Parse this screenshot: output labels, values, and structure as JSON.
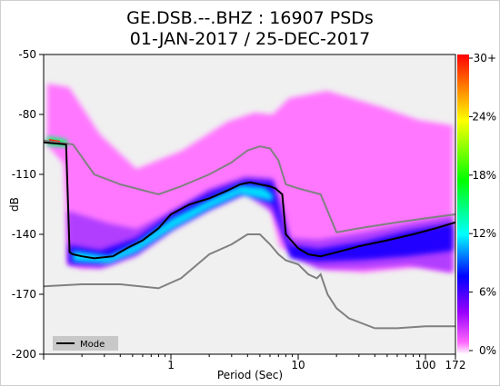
{
  "title_line1": "GE.DSB.--.BHZ : 16907 PSDs",
  "title_line2": "01-JAN-2017 / 25-DEC-2017",
  "chart_data": {
    "type": "heatmap",
    "xlabel": "Period (Sec)",
    "ylabel": "dB",
    "xscale": "log",
    "xlim": [
      0.1,
      172
    ],
    "ylim": [
      -200,
      -50
    ],
    "xticks": [
      {
        "value": 1,
        "label": "1"
      },
      {
        "value": 10,
        "label": "10"
      },
      {
        "value": 100,
        "label": "100"
      },
      {
        "value": 172,
        "label": "172"
      }
    ],
    "yticks": [
      -50,
      -80,
      -110,
      -140,
      -170,
      -200
    ],
    "colorbar": {
      "labels": [
        "30+",
        "24%",
        "18%",
        "12%",
        "6%",
        "0%"
      ],
      "colors": [
        "#ff0000",
        "#ff8c00",
        "#ffff00",
        "#00ff00",
        "#00ffff",
        "#0000ff",
        "#9900ff",
        "#ff66ff",
        "#ffffff"
      ]
    },
    "legend": {
      "placement": "bottom-left",
      "entries": [
        "Mode"
      ]
    },
    "series": [
      {
        "name": "Mode",
        "color": "#000000",
        "x": [
          0.1,
          0.15,
          0.16,
          0.17,
          0.2,
          0.25,
          0.35,
          0.45,
          0.6,
          0.8,
          1,
          1.4,
          2,
          2.8,
          3.5,
          4.2,
          5,
          6,
          6.6,
          7.5,
          8,
          10,
          12,
          15,
          20,
          30,
          50,
          80,
          120,
          172
        ],
        "y": [
          -94,
          -95,
          -149,
          -150,
          -151,
          -152,
          -151,
          -147,
          -143,
          -137,
          -130,
          -125,
          -122,
          -118,
          -115,
          -114,
          -115,
          -116,
          -117,
          -120,
          -140,
          -147,
          -150,
          -151,
          -149,
          -146,
          -143,
          -140,
          -137,
          -134
        ]
      },
      {
        "name": "",
        "color": "#808080",
        "x": [
          0.1,
          0.17,
          0.25,
          0.4,
          0.8,
          1.2,
          2,
          3,
          4,
          5,
          6,
          7,
          8,
          10,
          15,
          20,
          30,
          60,
          100,
          172
        ],
        "y": [
          -93,
          -95,
          -110,
          -115,
          -120,
          -116,
          -110,
          -104,
          -98,
          -96,
          -97,
          -103,
          -115,
          -117,
          -120,
          -139,
          -137,
          -134,
          -132,
          -130
        ]
      },
      {
        "name": "",
        "color": "#808080",
        "x": [
          0.1,
          0.2,
          0.4,
          0.8,
          1.2,
          2,
          3,
          4,
          5,
          6,
          7,
          8,
          10,
          12,
          14,
          15,
          17,
          20,
          25,
          40,
          60,
          100,
          172
        ],
        "y": [
          -166,
          -165,
          -165,
          -167,
          -162,
          -150,
          -145,
          -140,
          -140,
          -145,
          -150,
          -153,
          -155,
          -160,
          -162,
          -160,
          -170,
          -177,
          -182,
          -187,
          -187,
          -186,
          -186
        ]
      }
    ],
    "grid": false
  }
}
